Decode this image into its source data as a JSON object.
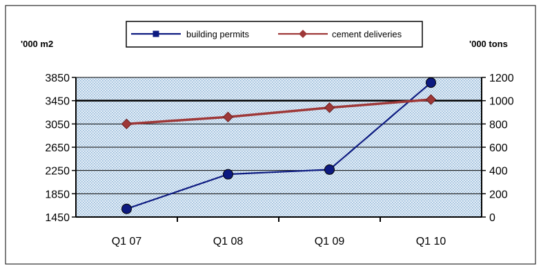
{
  "chart_data": {
    "type": "line",
    "categories": [
      "Q1 07",
      "Q1 08",
      "Q1 09",
      "Q1 10"
    ],
    "series": [
      {
        "name": "building permits",
        "axis": "left",
        "color": "#0d1a80",
        "marker": "circle",
        "values": [
          1590,
          2185,
          2265,
          3760
        ]
      },
      {
        "name": "cement deliveries",
        "axis": "right",
        "color": "#9e3838",
        "marker": "diamond",
        "values": [
          800,
          860,
          940,
          1010
        ]
      }
    ],
    "left_axis": {
      "unit_label": "'000 m2",
      "min": 1450,
      "max": 3850,
      "ticks": [
        1450,
        1850,
        2250,
        2650,
        3050,
        3450,
        3850
      ]
    },
    "right_axis": {
      "unit_label": "'000 tons",
      "min": 0,
      "max": 1200,
      "ticks": [
        0,
        200,
        400,
        600,
        800,
        1000,
        1200
      ]
    },
    "grid": true,
    "legend_position": "top-center",
    "plot_background": "#d6e6f2"
  }
}
